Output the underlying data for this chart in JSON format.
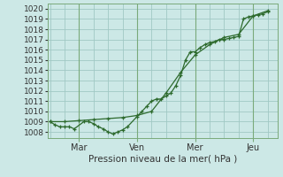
{
  "line1_x": [
    0,
    0.5,
    1,
    1.5,
    2,
    2.5,
    3.5,
    4,
    4.5,
    5,
    5.5,
    6,
    6.5,
    7,
    7.5,
    8,
    9,
    9.5,
    10,
    10.5,
    11,
    11.5,
    12,
    12.5,
    13,
    13.5,
    14,
    14.5,
    15,
    15.5,
    16,
    16.5,
    17,
    17.5,
    18,
    18.5,
    19,
    19.5,
    20,
    20.5,
    21,
    21.5,
    22,
    22.5
  ],
  "line1_y": [
    1009.0,
    1008.7,
    1008.5,
    1008.5,
    1008.5,
    1008.3,
    1009.0,
    1009.0,
    1008.8,
    1008.5,
    1008.3,
    1008.0,
    1007.8,
    1008.0,
    1008.2,
    1008.5,
    1009.5,
    1010.0,
    1010.5,
    1011.0,
    1011.2,
    1011.2,
    1011.5,
    1011.8,
    1012.5,
    1013.5,
    1015.0,
    1015.8,
    1015.8,
    1016.2,
    1016.5,
    1016.7,
    1016.8,
    1017.0,
    1017.0,
    1017.1,
    1017.2,
    1017.3,
    1019.0,
    1019.2,
    1019.3,
    1019.4,
    1019.5,
    1019.7
  ],
  "line2_x": [
    0,
    1.5,
    3,
    4.5,
    6,
    7.5,
    9,
    10.5,
    12,
    13.5,
    15,
    16.5,
    18,
    19.5,
    21,
    22.5
  ],
  "line2_y": [
    1009.0,
    1009.0,
    1009.1,
    1009.2,
    1009.3,
    1009.4,
    1009.6,
    1010.0,
    1011.8,
    1013.8,
    1015.5,
    1016.5,
    1017.2,
    1017.5,
    1019.3,
    1019.8
  ],
  "line_color": "#2d6a2d",
  "marker_color": "#2d6a2d",
  "bg_color": "#cce8e6",
  "grid_color": "#a0c8c4",
  "axis_color": "#7aaa7a",
  "text_color": "#333333",
  "xlabel": "Pression niveau de la mer( hPa )",
  "yticks": [
    1008,
    1009,
    1010,
    1011,
    1012,
    1013,
    1014,
    1015,
    1016,
    1017,
    1018,
    1019,
    1020
  ],
  "xtick_labels": [
    "Mar",
    "Ven",
    "Mer",
    "Jeu"
  ],
  "xtick_positions": [
    3,
    9,
    15,
    21
  ],
  "vline_positions": [
    3,
    9,
    15,
    21
  ],
  "xlim": [
    -0.2,
    23.5
  ],
  "ylim": [
    1007.4,
    1020.5
  ]
}
